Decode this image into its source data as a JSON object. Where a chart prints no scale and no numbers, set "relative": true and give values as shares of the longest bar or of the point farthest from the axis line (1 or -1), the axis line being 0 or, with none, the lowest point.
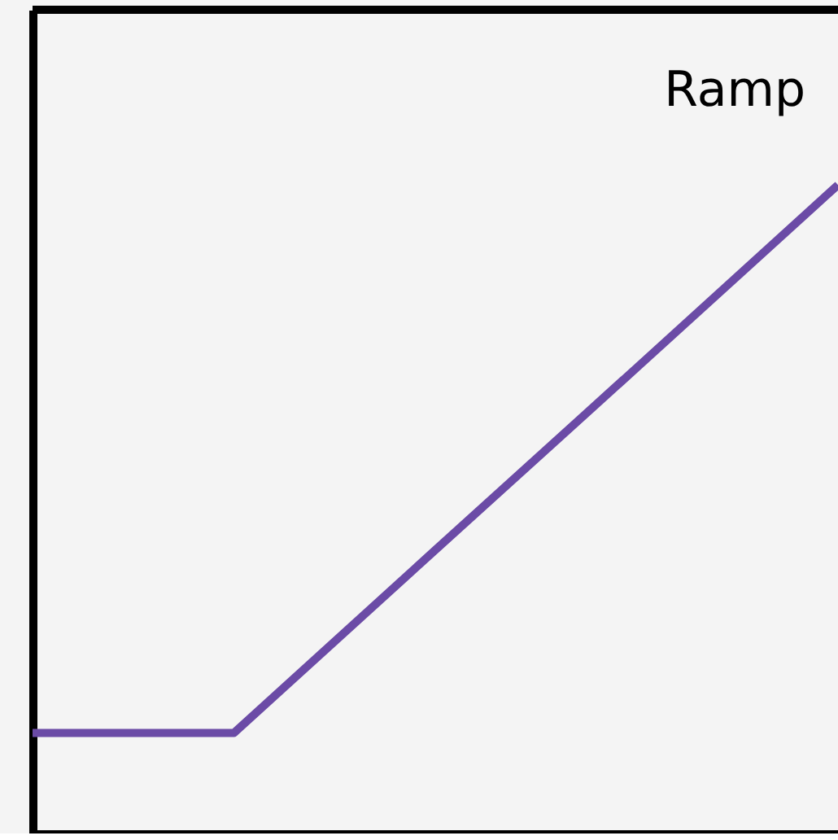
{
  "chart_data": {
    "type": "line",
    "title": "Ramp",
    "relative": true,
    "categories": [
      null,
      null,
      null,
      null,
      null
    ],
    "series": [
      {
        "color": "#6b4ba6",
        "values": [
          0.155,
          0.155,
          0.437,
          0.718,
          1
        ]
      }
    ],
    "grid": false,
    "marker": "none",
    "line_style": "solid"
  }
}
